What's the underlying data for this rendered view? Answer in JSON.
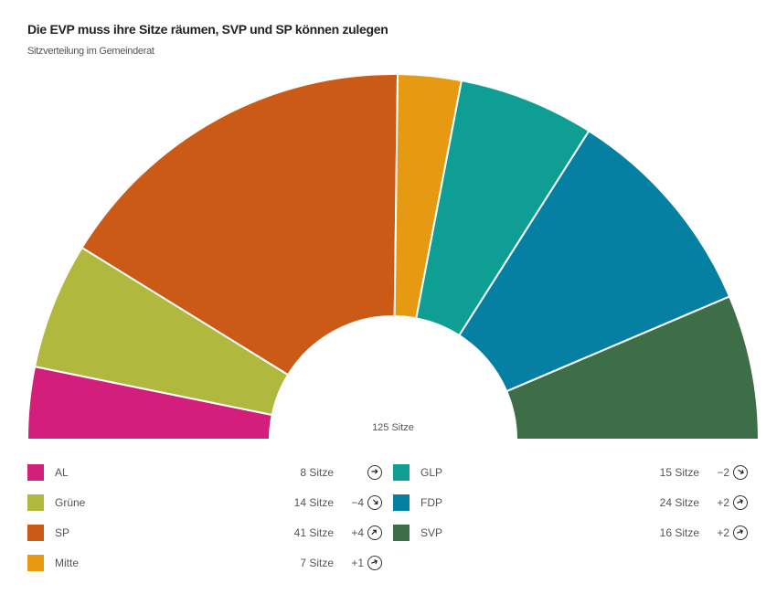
{
  "title": "Die EVP muss ihre Sitze räumen, SVP und SP können zulegen",
  "subtitle": "Sitzverteilung im Gemeinderat",
  "total_label": "125 Sitze",
  "chart_data": {
    "type": "pie",
    "variant": "semicircle-donut",
    "title": "Die EVP muss ihre Sitze räumen, SVP und SP können zulegen",
    "subtitle": "Sitzverteilung im Gemeinderat",
    "total": 125,
    "parties": [
      {
        "name": "AL",
        "seats": 8,
        "seats_label": "8 Sitze",
        "change": 0,
        "change_label": "",
        "color": "#d31e7c"
      },
      {
        "name": "Grüne",
        "seats": 14,
        "seats_label": "14 Sitze",
        "change": -4,
        "change_label": "−4",
        "color": "#b0b83e"
      },
      {
        "name": "SP",
        "seats": 41,
        "seats_label": "41 Sitze",
        "change": 4,
        "change_label": "+4",
        "color": "#cc5a17"
      },
      {
        "name": "Mitte",
        "seats": 7,
        "seats_label": "7 Sitze",
        "change": 1,
        "change_label": "+1",
        "color": "#e69a12"
      },
      {
        "name": "GLP",
        "seats": 15,
        "seats_label": "15 Sitze",
        "change": -2,
        "change_label": "−2",
        "color": "#0e9e94"
      },
      {
        "name": "FDP",
        "seats": 24,
        "seats_label": "24 Sitze",
        "change": 2,
        "change_label": "+2",
        "color": "#0580a3"
      },
      {
        "name": "SVP",
        "seats": 16,
        "seats_label": "16 Sitze",
        "change": 2,
        "change_label": "+2",
        "color": "#3d6e47"
      }
    ]
  }
}
